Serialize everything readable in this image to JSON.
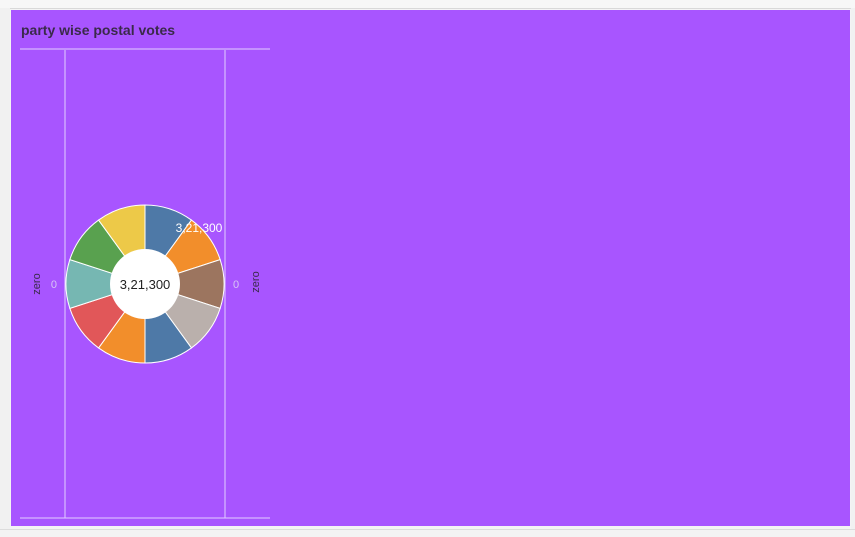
{
  "sheet": {
    "title": "party wise postal votes"
  },
  "colors": {
    "background": "#a855ff",
    "gridline": "#e2cfff",
    "slices": [
      "#4e79a7",
      "#f28e2b",
      "#9c755f",
      "#bab0ac",
      "#4e79a7",
      "#f28e2b",
      "#e15759",
      "#76b7b2",
      "#59a14f",
      "#edc948"
    ]
  },
  "chart_data": {
    "type": "pie",
    "variant": "donut",
    "title": "party wise postal votes",
    "slices": [
      {
        "value": 1
      },
      {
        "value": 1
      },
      {
        "value": 1
      },
      {
        "value": 1
      },
      {
        "value": 1
      },
      {
        "value": 1
      },
      {
        "value": 1
      },
      {
        "value": 1
      },
      {
        "value": 1
      },
      {
        "value": 1
      }
    ],
    "center_label": "3,21,300",
    "data_label": "3,21,300",
    "left_axis": {
      "label": "zero",
      "tick": "0"
    },
    "right_axis": {
      "label": "zero",
      "tick": "0"
    },
    "legend": "none"
  }
}
